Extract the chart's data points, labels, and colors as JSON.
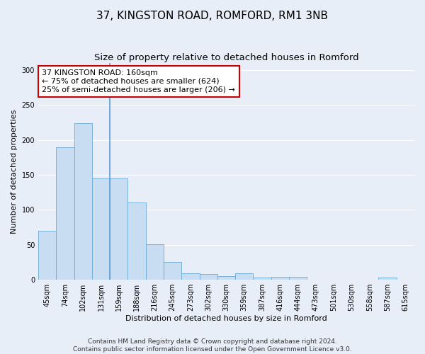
{
  "title": "37, KINGSTON ROAD, ROMFORD, RM1 3NB",
  "subtitle": "Size of property relative to detached houses in Romford",
  "xlabel": "Distribution of detached houses by size in Romford",
  "ylabel": "Number of detached properties",
  "categories": [
    "45sqm",
    "74sqm",
    "102sqm",
    "131sqm",
    "159sqm",
    "188sqm",
    "216sqm",
    "245sqm",
    "273sqm",
    "302sqm",
    "330sqm",
    "359sqm",
    "387sqm",
    "416sqm",
    "444sqm",
    "473sqm",
    "501sqm",
    "530sqm",
    "558sqm",
    "587sqm",
    "615sqm"
  ],
  "values": [
    70,
    190,
    224,
    145,
    145,
    111,
    51,
    26,
    9,
    8,
    5,
    9,
    3,
    4,
    4,
    0,
    0,
    0,
    0,
    3,
    0
  ],
  "bar_color": "#c8ddf2",
  "bar_edge_color": "#6aaad4",
  "annotation_line1": "37 KINGSTON ROAD: 160sqm",
  "annotation_line2": "← 75% of detached houses are smaller (624)",
  "annotation_line3": "25% of semi-detached houses are larger (206) →",
  "annotation_box_color": "white",
  "annotation_box_edge_color": "#cc0000",
  "ylim": [
    0,
    310
  ],
  "yticks": [
    0,
    50,
    100,
    150,
    200,
    250,
    300
  ],
  "footer_line1": "Contains HM Land Registry data © Crown copyright and database right 2024.",
  "footer_line2": "Contains public sector information licensed under the Open Government Licence v3.0.",
  "bg_color": "#e8eef8",
  "grid_color": "white",
  "title_fontsize": 11,
  "subtitle_fontsize": 9.5,
  "axis_label_fontsize": 8,
  "tick_fontsize": 7,
  "annotation_fontsize": 8,
  "footer_fontsize": 6.5
}
